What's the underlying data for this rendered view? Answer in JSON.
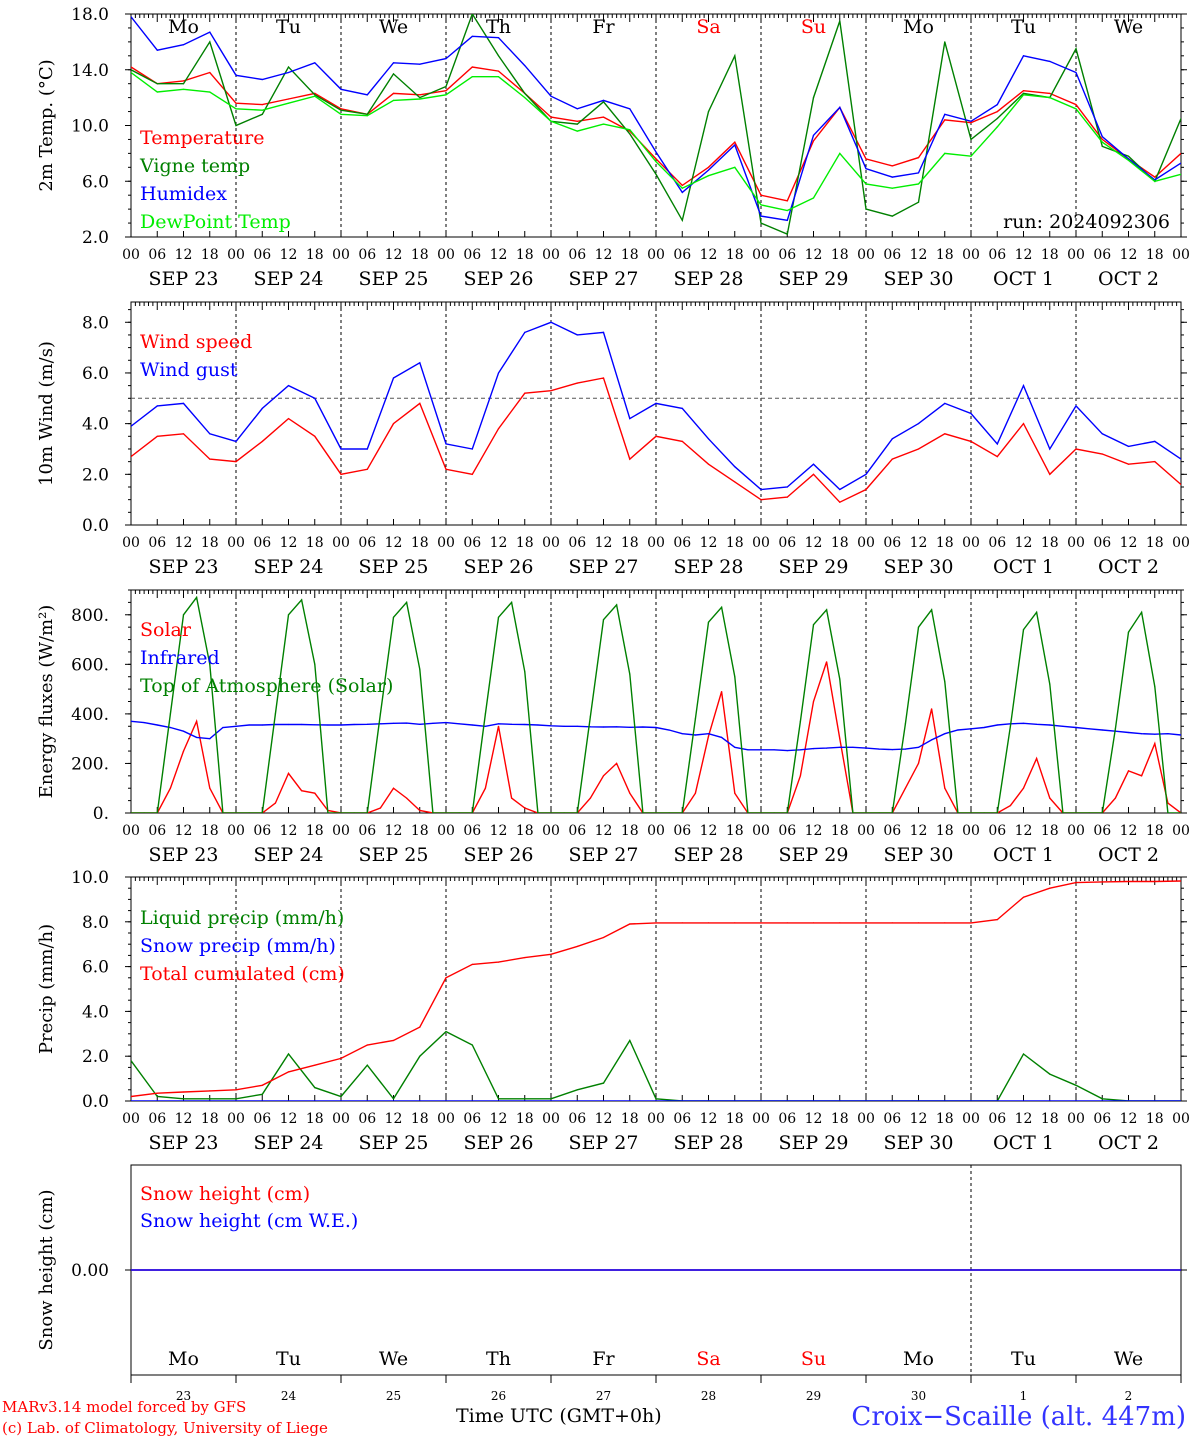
{
  "chart_data": [
    {
      "type": "line",
      "ylabel": "2m Temp. (°C)",
      "ylim": [
        2,
        18
      ],
      "yticks": [
        "2.0",
        "6.0",
        "10.0",
        "14.0",
        "18.0"
      ],
      "ytick_values": [
        2,
        6,
        10,
        14,
        18
      ],
      "hours": [
        0,
        6,
        12,
        18,
        24,
        30,
        36,
        42,
        48,
        54,
        60,
        66,
        72,
        78,
        84,
        90,
        96,
        102,
        108,
        114,
        120,
        126,
        132,
        138,
        144,
        150,
        156,
        162,
        168,
        174,
        180,
        186,
        192,
        198,
        204,
        210,
        216,
        222,
        228,
        234,
        240
      ],
      "series": [
        {
          "name": "Temperature",
          "color": "#ff0000",
          "values": [
            14.2,
            13,
            13.2,
            13.8,
            11.6,
            11.5,
            11.9,
            12.3,
            11.2,
            10.8,
            12.3,
            12.2,
            12.5,
            14.2,
            13.9,
            12.3,
            10.6,
            10.3,
            10.6,
            9.6,
            7.6,
            5.7,
            7.0,
            8.8,
            5.0,
            4.6,
            8.9,
            11.3,
            7.6,
            7.1,
            7.7,
            10.4,
            10.2,
            11,
            12.5,
            12.3,
            11.5,
            9.0,
            7.6,
            6.3,
            8.0
          ]
        },
        {
          "name": "Vigne temp",
          "color": "#008000",
          "values": [
            14,
            13,
            13,
            16,
            10,
            10.8,
            14.2,
            12.2,
            11.1,
            10.8,
            13.7,
            12,
            12.8,
            18,
            15,
            12.3,
            10.3,
            10.1,
            11.7,
            9.4,
            6.5,
            3.2,
            11,
            15,
            3.0,
            2.2,
            12,
            17.5,
            4.0,
            3.5,
            4.5,
            16,
            9.0,
            10.5,
            12.3,
            12,
            15.5,
            8.5,
            7.8,
            6.0,
            10.5
          ]
        },
        {
          "name": "Humidex",
          "color": "#0000ff",
          "values": [
            17.8,
            15.4,
            15.8,
            16.7,
            13.6,
            13.3,
            13.8,
            14.5,
            12.6,
            12.2,
            14.5,
            14.4,
            14.8,
            16.4,
            16.3,
            14.3,
            12.1,
            11.2,
            11.8,
            11.2,
            8.1,
            5.2,
            6.8,
            8.6,
            3.5,
            3.2,
            9.3,
            11.3,
            6.9,
            6.3,
            6.6,
            10.8,
            10.3,
            11.5,
            15,
            14.6,
            13.8,
            9.2,
            7.6,
            6.1,
            7.3
          ]
        },
        {
          "name": "DewPoint Temp",
          "color": "#00ee00",
          "values": [
            13.8,
            12.4,
            12.6,
            12.4,
            11.2,
            11.1,
            11.6,
            12.1,
            10.8,
            10.7,
            11.8,
            11.9,
            12.2,
            13.5,
            13.5,
            12,
            10.3,
            9.6,
            10.1,
            9.7,
            7.4,
            5.5,
            6.4,
            7,
            4.3,
            3.9,
            4.8,
            8.0,
            5.8,
            5.5,
            5.8,
            8.0,
            7.8,
            9.9,
            12.2,
            12,
            11.2,
            8.8,
            7.5,
            6.0,
            6.5
          ]
        }
      ],
      "legend": [
        {
          "label": "Temperature",
          "color": "#ff0000"
        },
        {
          "label": "Vigne temp",
          "color": "#008000"
        },
        {
          "label": "Humidex",
          "color": "#0000ff"
        },
        {
          "label": "DewPoint Temp",
          "color": "#00ee00"
        }
      ],
      "annotation": "run: 2024092306",
      "reference_line": null
    },
    {
      "type": "line",
      "ylabel": "10m Wind (m/s)",
      "ylim": [
        0,
        8.8
      ],
      "yticks": [
        "0.0",
        "2.0",
        "4.0",
        "6.0",
        "8.0"
      ],
      "ytick_values": [
        0,
        2,
        4,
        6,
        8
      ],
      "hours": [
        0,
        6,
        12,
        18,
        24,
        30,
        36,
        42,
        48,
        54,
        60,
        66,
        72,
        78,
        84,
        90,
        96,
        102,
        108,
        114,
        120,
        126,
        132,
        138,
        144,
        150,
        156,
        162,
        168,
        174,
        180,
        186,
        192,
        198,
        204,
        210,
        216,
        222,
        228,
        234,
        240
      ],
      "series": [
        {
          "name": "Wind speed",
          "color": "#ff0000",
          "values": [
            2.7,
            3.5,
            3.6,
            2.6,
            2.5,
            3.3,
            4.2,
            3.5,
            2.0,
            2.2,
            4.0,
            4.8,
            2.2,
            2.0,
            3.8,
            5.2,
            5.3,
            5.6,
            5.8,
            2.6,
            3.5,
            3.3,
            2.4,
            1.7,
            1.0,
            1.1,
            2.0,
            0.9,
            1.4,
            2.6,
            3.0,
            3.6,
            3.3,
            2.7,
            4.0,
            2.0,
            3.0,
            2.8,
            2.4,
            2.5,
            1.6
          ]
        },
        {
          "name": "Wind gust",
          "color": "#0000ff",
          "values": [
            3.9,
            4.7,
            4.8,
            3.6,
            3.3,
            4.6,
            5.5,
            5.0,
            3.0,
            3.0,
            5.8,
            6.4,
            3.2,
            3.0,
            6.0,
            7.6,
            8.0,
            7.5,
            7.6,
            4.2,
            4.8,
            4.6,
            3.4,
            2.3,
            1.4,
            1.5,
            2.4,
            1.4,
            2.0,
            3.4,
            4.0,
            4.8,
            4.4,
            3.2,
            5.5,
            3.0,
            4.7,
            3.6,
            3.1,
            3.3,
            2.6
          ]
        }
      ],
      "legend": [
        {
          "label": "Wind speed",
          "color": "#ff0000"
        },
        {
          "label": "Wind gust",
          "color": "#0000ff"
        }
      ],
      "annotation": "",
      "reference_line": 5
    },
    {
      "type": "line",
      "ylabel": "Energy fluxes (W/m²)",
      "ylim": [
        0,
        900
      ],
      "yticks": [
        "0.",
        "200.",
        "400.",
        "600.",
        "800."
      ],
      "ytick_values": [
        0,
        200,
        400,
        600,
        800
      ],
      "hours": [
        0,
        3,
        6,
        9,
        12,
        15,
        18,
        21,
        24,
        27,
        30,
        33,
        36,
        39,
        42,
        45,
        48,
        51,
        54,
        57,
        60,
        63,
        66,
        69,
        72,
        75,
        78,
        81,
        84,
        87,
        90,
        93,
        96,
        99,
        102,
        105,
        108,
        111,
        114,
        117,
        120,
        123,
        126,
        129,
        132,
        135,
        138,
        141,
        144,
        147,
        150,
        153,
        156,
        159,
        162,
        165,
        168,
        171,
        174,
        177,
        180,
        183,
        186,
        189,
        192,
        195,
        198,
        201,
        204,
        207,
        210,
        213,
        216,
        219,
        222,
        225,
        228,
        231,
        234,
        237,
        240
      ],
      "series": [
        {
          "name": "Solar",
          "color": "#ff0000",
          "values": [
            0,
            0,
            0,
            100,
            250,
            370,
            100,
            0,
            0,
            0,
            0,
            40,
            160,
            90,
            80,
            10,
            0,
            0,
            0,
            20,
            100,
            60,
            10,
            0,
            0,
            0,
            0,
            100,
            350,
            60,
            20,
            0,
            0,
            0,
            0,
            60,
            150,
            200,
            80,
            0,
            0,
            0,
            0,
            80,
            310,
            490,
            80,
            0,
            0,
            0,
            0,
            150,
            450,
            610,
            300,
            0,
            0,
            0,
            0,
            100,
            200,
            420,
            100,
            0,
            0,
            0,
            0,
            30,
            100,
            220,
            60,
            0,
            0,
            0,
            0,
            60,
            170,
            150,
            280,
            40,
            0
          ]
        },
        {
          "name": "Infrared",
          "color": "#0000ff",
          "values": [
            370,
            365,
            355,
            345,
            330,
            305,
            300,
            345,
            350,
            355,
            355,
            357,
            357,
            357,
            356,
            355,
            355,
            357,
            358,
            360,
            362,
            363,
            358,
            362,
            365,
            360,
            355,
            350,
            360,
            358,
            357,
            355,
            352,
            350,
            350,
            348,
            347,
            348,
            346,
            347,
            345,
            335,
            320,
            315,
            320,
            305,
            265,
            255,
            255,
            255,
            252,
            255,
            260,
            262,
            265,
            265,
            262,
            258,
            256,
            258,
            265,
            295,
            320,
            335,
            340,
            345,
            355,
            360,
            362,
            358,
            355,
            350,
            345,
            340,
            335,
            330,
            325,
            320,
            318,
            320,
            315
          ]
        },
        {
          "name": "Top of Atmosphere (Solar)",
          "color": "#008000",
          "values": [
            0,
            0,
            0,
            400,
            800,
            870,
            600,
            0,
            0,
            0,
            0,
            400,
            800,
            860,
            600,
            0,
            0,
            0,
            0,
            400,
            790,
            850,
            580,
            0,
            0,
            0,
            0,
            400,
            790,
            850,
            570,
            0,
            0,
            0,
            0,
            390,
            780,
            840,
            560,
            0,
            0,
            0,
            0,
            380,
            770,
            830,
            550,
            0,
            0,
            0,
            0,
            370,
            760,
            820,
            540,
            0,
            0,
            0,
            0,
            360,
            750,
            820,
            530,
            0,
            0,
            0,
            0,
            350,
            740,
            810,
            520,
            0,
            0,
            0,
            0,
            340,
            730,
            810,
            510,
            0,
            0
          ]
        }
      ],
      "legend": [
        {
          "label": "Solar",
          "color": "#ff0000"
        },
        {
          "label": "Infrared",
          "color": "#0000ff"
        },
        {
          "label": "Top of Atmosphere (Solar)",
          "color": "#008000"
        }
      ],
      "annotation": "",
      "reference_line": null
    },
    {
      "type": "line",
      "ylabel": "Precip (mm/h)",
      "ylim": [
        0,
        10
      ],
      "yticks": [
        "0.0",
        "2.0",
        "4.0",
        "6.0",
        "8.0",
        "10.0"
      ],
      "ytick_values": [
        0,
        2,
        4,
        6,
        8,
        10
      ],
      "hours": [
        0,
        6,
        12,
        18,
        24,
        30,
        36,
        42,
        48,
        54,
        60,
        66,
        72,
        78,
        84,
        90,
        96,
        102,
        108,
        114,
        120,
        126,
        132,
        138,
        144,
        150,
        156,
        162,
        168,
        174,
        180,
        186,
        192,
        198,
        204,
        210,
        216,
        222,
        228,
        234,
        240
      ],
      "series": [
        {
          "name": "Liquid precip (mm/h)",
          "color": "#008000",
          "values": [
            1.8,
            0.2,
            0.1,
            0.1,
            0.1,
            0.3,
            2.1,
            0.6,
            0.2,
            1.6,
            0.1,
            2.0,
            3.1,
            2.5,
            0.1,
            0.1,
            0.1,
            0.5,
            0.8,
            2.7,
            0.1,
            0,
            0,
            0,
            0,
            0,
            0,
            0,
            0,
            0,
            0,
            0,
            0,
            0,
            2.1,
            1.2,
            0.7,
            0.1,
            0,
            0,
            0
          ]
        },
        {
          "name": "Snow precip (mm/h)",
          "color": "#0000ff",
          "values": [
            0,
            0,
            0,
            0,
            0,
            0,
            0,
            0,
            0,
            0,
            0,
            0,
            0,
            0,
            0,
            0,
            0,
            0,
            0,
            0,
            0,
            0,
            0,
            0,
            0,
            0,
            0,
            0,
            0,
            0,
            0,
            0,
            0,
            0,
            0,
            0,
            0,
            0,
            0,
            0,
            0
          ]
        },
        {
          "name": "Total cumulated (cm)",
          "color": "#ff0000",
          "values": [
            0.2,
            0.35,
            0.4,
            0.45,
            0.5,
            0.7,
            1.3,
            1.6,
            1.9,
            2.5,
            2.7,
            3.3,
            5.5,
            6.1,
            6.2,
            6.4,
            6.55,
            6.9,
            7.3,
            7.9,
            7.95,
            7.95,
            7.95,
            7.95,
            7.95,
            7.95,
            7.95,
            7.95,
            7.95,
            7.95,
            7.95,
            7.95,
            7.95,
            8.1,
            9.1,
            9.5,
            9.75,
            9.78,
            9.8,
            9.8,
            9.82
          ]
        }
      ],
      "legend": [
        {
          "label": "Liquid precip (mm/h)",
          "color": "#008000"
        },
        {
          "label": "Snow precip (mm/h)",
          "color": "#0000ff"
        },
        {
          "label": "Total cumulated (cm)",
          "color": "#ff0000"
        }
      ],
      "annotation": "",
      "reference_line": null
    },
    {
      "type": "line",
      "ylabel": "Snow height (cm)",
      "ylim": [
        -1,
        1
      ],
      "yticks": [
        "0.00"
      ],
      "ytick_values": [
        0
      ],
      "hours": [
        0,
        240
      ],
      "series": [
        {
          "name": "Snow height (cm)",
          "color": "#ff0000",
          "values": [
            0,
            0
          ]
        },
        {
          "name": "Snow height (cm W.E.)",
          "color": "#0000ff",
          "values": [
            0,
            0
          ]
        }
      ],
      "legend": [
        {
          "label": "Snow height (cm)",
          "color": "#ff0000"
        },
        {
          "label": "Snow height (cm W.E.)",
          "color": "#0000ff"
        }
      ],
      "annotation": "",
      "reference_line": null
    }
  ],
  "hour_labels": [
    "00",
    "06",
    "12",
    "18",
    "00",
    "06",
    "12",
    "18",
    "00",
    "06",
    "12",
    "18",
    "00",
    "06",
    "12",
    "18",
    "00",
    "06",
    "12",
    "18",
    "00",
    "06",
    "12",
    "18",
    "00",
    "06",
    "12",
    "18",
    "00",
    "06",
    "12",
    "18",
    "00",
    "06",
    "12",
    "18",
    "00",
    "06",
    "12",
    "18",
    "00"
  ],
  "date_labels": [
    "SEP 23",
    "SEP 24",
    "SEP 25",
    "SEP 26",
    "SEP 27",
    "SEP 28",
    "SEP 29",
    "SEP 30",
    "OCT  1",
    "OCT  2"
  ],
  "weekdays": [
    {
      "label": "Mo",
      "color": "#000000"
    },
    {
      "label": "Tu",
      "color": "#000000"
    },
    {
      "label": "We",
      "color": "#000000"
    },
    {
      "label": "Th",
      "color": "#000000"
    },
    {
      "label": "Fr",
      "color": "#000000"
    },
    {
      "label": "Sa",
      "color": "#ff0000"
    },
    {
      "label": "Su",
      "color": "#ff0000"
    },
    {
      "label": "Mo",
      "color": "#000000"
    },
    {
      "label": "Tu",
      "color": "#000000"
    },
    {
      "label": "We",
      "color": "#000000"
    }
  ],
  "day_numbers": [
    "23",
    "24",
    "25",
    "26",
    "27",
    "28",
    "29",
    "30",
    "1",
    "2"
  ],
  "footer": {
    "credit_line1": "MARv3.14 model forced by GFS",
    "credit_line2": "(c) Lab. of Climatology, University of Liege",
    "time_label": "Time UTC (GMT+0h)",
    "station": "Croix−Scaille (alt. 447m)"
  }
}
